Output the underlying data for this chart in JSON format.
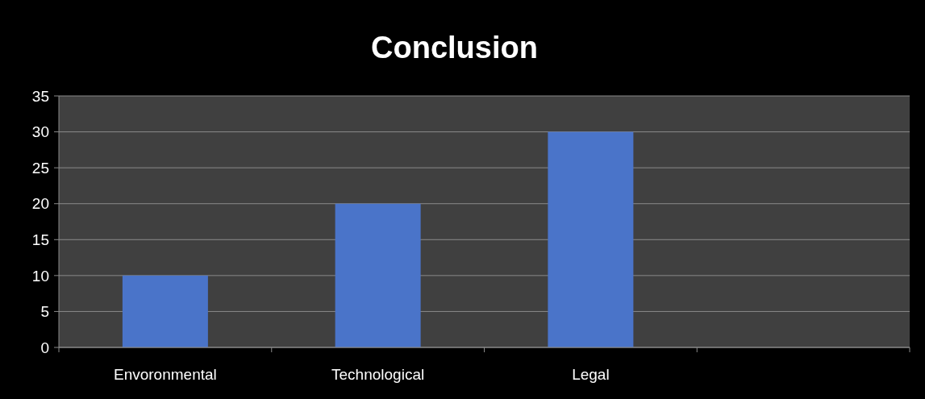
{
  "chart_data": {
    "type": "bar",
    "title": "Conclusion",
    "categories": [
      "Envoronmental",
      "Technological",
      "Legal",
      null
    ],
    "values": [
      10,
      20,
      30,
      null
    ],
    "color": "#4a74c9",
    "ylim": [
      0,
      35
    ],
    "yticks": [
      0,
      5,
      10,
      15,
      20,
      25,
      30,
      35
    ],
    "grid": "y"
  }
}
